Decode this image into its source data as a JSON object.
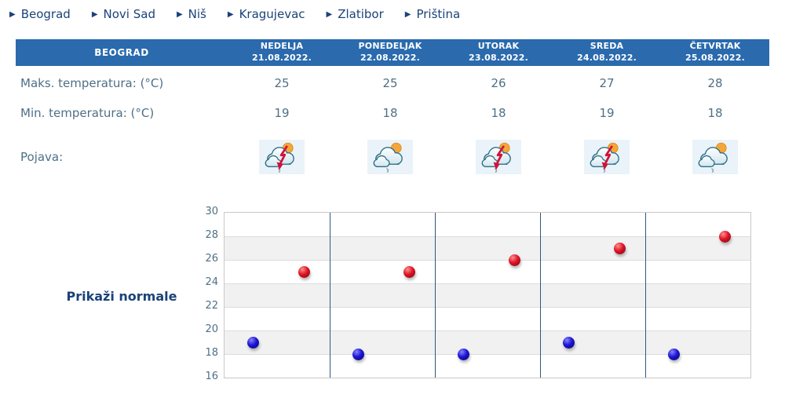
{
  "nav": {
    "arrow_glyph": "▶",
    "items": [
      {
        "label": "Beograd"
      },
      {
        "label": "Novi Sad"
      },
      {
        "label": "Niš"
      },
      {
        "label": "Kragujevac"
      },
      {
        "label": "Zlatibor"
      },
      {
        "label": "Priština"
      }
    ]
  },
  "forecast": {
    "station": "BEOGRAD",
    "max_label": "Maks. temperatura: (°C)",
    "min_label": "Min. temperatura: (°C)",
    "phenomenon_label": "Pojava:",
    "days": [
      {
        "name": "NEDELJA",
        "date": "21.08.2022.",
        "max": "25",
        "min": "19",
        "icon": "cloud-sun-rain-thunder"
      },
      {
        "name": "PONEDELJAK",
        "date": "22.08.2022.",
        "max": "25",
        "min": "18",
        "icon": "cloud-sun-rain"
      },
      {
        "name": "UTORAK",
        "date": "23.08.2022.",
        "max": "26",
        "min": "18",
        "icon": "cloud-sun-rain-thunder"
      },
      {
        "name": "SREDA",
        "date": "24.08.2022.",
        "max": "27",
        "min": "19",
        "icon": "cloud-sun-rain-thunder"
      },
      {
        "name": "ČETVRTAK",
        "date": "25.08.2022.",
        "max": "28",
        "min": "18",
        "icon": "cloud-sun-rain"
      }
    ]
  },
  "chart": {
    "button_label": "Prikaži normale"
  },
  "chart_data": {
    "type": "scatter",
    "categories": [
      "NEDELJA 21.08.2022.",
      "PONEDELJAK 22.08.2022.",
      "UTORAK 23.08.2022.",
      "SREDA 24.08.2022.",
      "ČETVRTAK 25.08.2022."
    ],
    "series": [
      {
        "name": "Maks. temperatura (°C)",
        "color": "#dd1526",
        "values": [
          25,
          25,
          26,
          27,
          28
        ]
      },
      {
        "name": "Min. temperatura (°C)",
        "color": "#1d15d4",
        "values": [
          19,
          18,
          18,
          19,
          18
        ]
      }
    ],
    "title": "",
    "xlabel": "",
    "ylabel": "",
    "ylim": [
      16,
      30
    ],
    "ytick_step": 2,
    "grid": true,
    "band_colors": [
      "#ffffff",
      "#f1f1f1"
    ],
    "gridline_color": "#dcdcdc",
    "separator_color": "#2f597c",
    "legend": "none"
  },
  "colors": {
    "header_bg": "#2a6aad",
    "header_text": "#ffffff",
    "navy_text": "#1b4279",
    "slate_text": "#4e7086",
    "icon_tile_bg": "#eaf3f9"
  }
}
